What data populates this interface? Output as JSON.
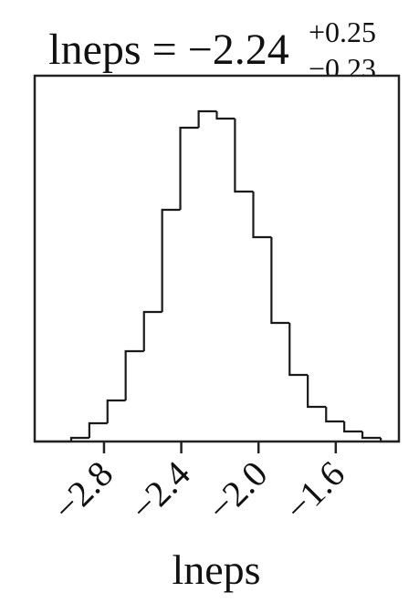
{
  "chart_data": {
    "type": "histogram",
    "title": "lneps = −2.24",
    "title_sup": "+0.25",
    "title_sub": "−0.23",
    "x_label": "lneps",
    "bins": [
      -3.159,
      -3.065,
      -2.97,
      -2.876,
      -2.782,
      -2.688,
      -2.593,
      -2.499,
      -2.405,
      -2.31,
      -2.216,
      -2.122,
      -2.027,
      -1.933,
      -1.839,
      -1.745,
      -1.65,
      -1.556,
      -1.462,
      -1.367,
      -1.273
    ],
    "counts": [
      0,
      0,
      4,
      20,
      45,
      99,
      142,
      254,
      344,
      362,
      354,
      274,
      224,
      130,
      73,
      38,
      22,
      11,
      4,
      0
    ],
    "color": "#1a1a1a",
    "xlim": [
      -3.159,
      -1.273
    ],
    "ylim": [
      0,
      401
    ],
    "xticks": [
      {
        "value": -2.8,
        "label": "−2.8"
      },
      {
        "value": -2.4,
        "label": "−2.4"
      },
      {
        "value": -2.0,
        "label": "−2.0"
      },
      {
        "value": -1.6,
        "label": "−1.6"
      }
    ]
  }
}
